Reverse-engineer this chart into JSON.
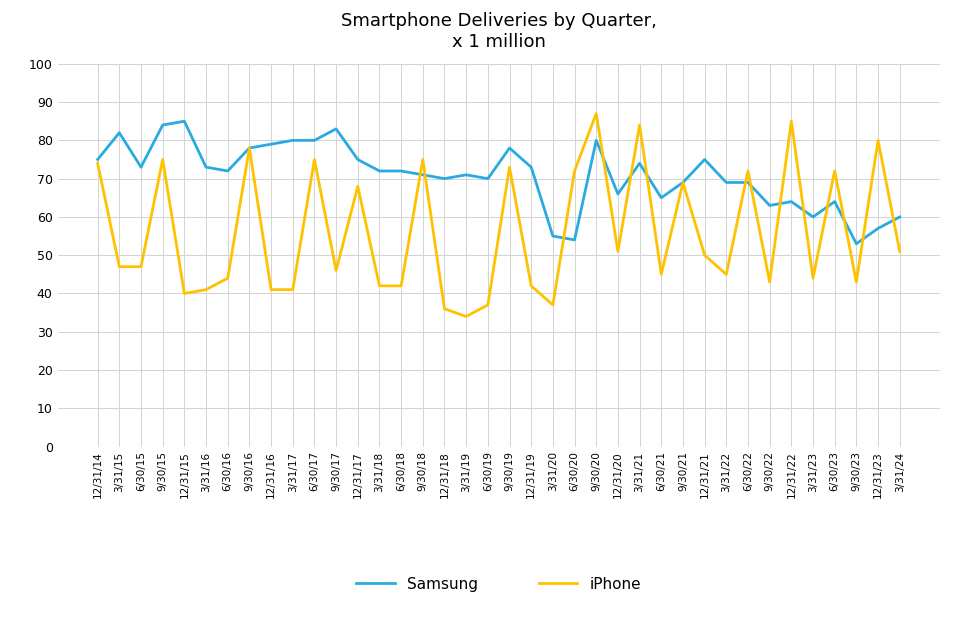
{
  "title_line1": "Smartphone Deliveries by Quarter,",
  "title_line2": "x 1 million",
  "x_labels": [
    "12/31/14",
    "3/31/15",
    "6/30/15",
    "9/30/15",
    "12/31/15",
    "3/31/16",
    "6/30/16",
    "9/30/16",
    "12/31/16",
    "3/31/17",
    "6/30/17",
    "9/30/17",
    "12/31/17",
    "3/31/18",
    "6/30/18",
    "9/30/18",
    "12/31/18",
    "3/31/19",
    "6/30/19",
    "9/30/19",
    "12/31/19",
    "3/31/20",
    "6/30/20",
    "9/30/20",
    "12/31/20",
    "3/31/21",
    "6/30/21",
    "9/30/21",
    "12/31/21",
    "3/31/22",
    "6/30/22",
    "9/30/22",
    "12/31/22",
    "3/31/23",
    "6/30/23",
    "9/30/23",
    "12/31/23",
    "3/31/24"
  ],
  "samsung": [
    75,
    82,
    73,
    84,
    85,
    73,
    72,
    78,
    79,
    80,
    80,
    83,
    75,
    72,
    72,
    71,
    70,
    71,
    70,
    78,
    73,
    55,
    54,
    80,
    66,
    74,
    65,
    69,
    75,
    69,
    69,
    63,
    64,
    60,
    64,
    53,
    57,
    60
  ],
  "iphone": [
    74,
    47,
    47,
    75,
    40,
    41,
    44,
    78,
    41,
    41,
    75,
    46,
    68,
    42,
    42,
    75,
    36,
    34,
    37,
    73,
    42,
    37,
    72,
    87,
    51,
    84,
    45,
    69,
    50,
    45,
    72,
    43,
    85,
    44,
    72,
    43,
    80,
    51
  ],
  "samsung_color": "#29ABE2",
  "iphone_color": "#FFC200",
  "ylim": [
    0,
    100
  ],
  "ytick_step": 10,
  "legend_labels": [
    "Samsung",
    "iPhone"
  ],
  "background_color": "#FFFFFF",
  "grid_color": "#D3D3D3"
}
